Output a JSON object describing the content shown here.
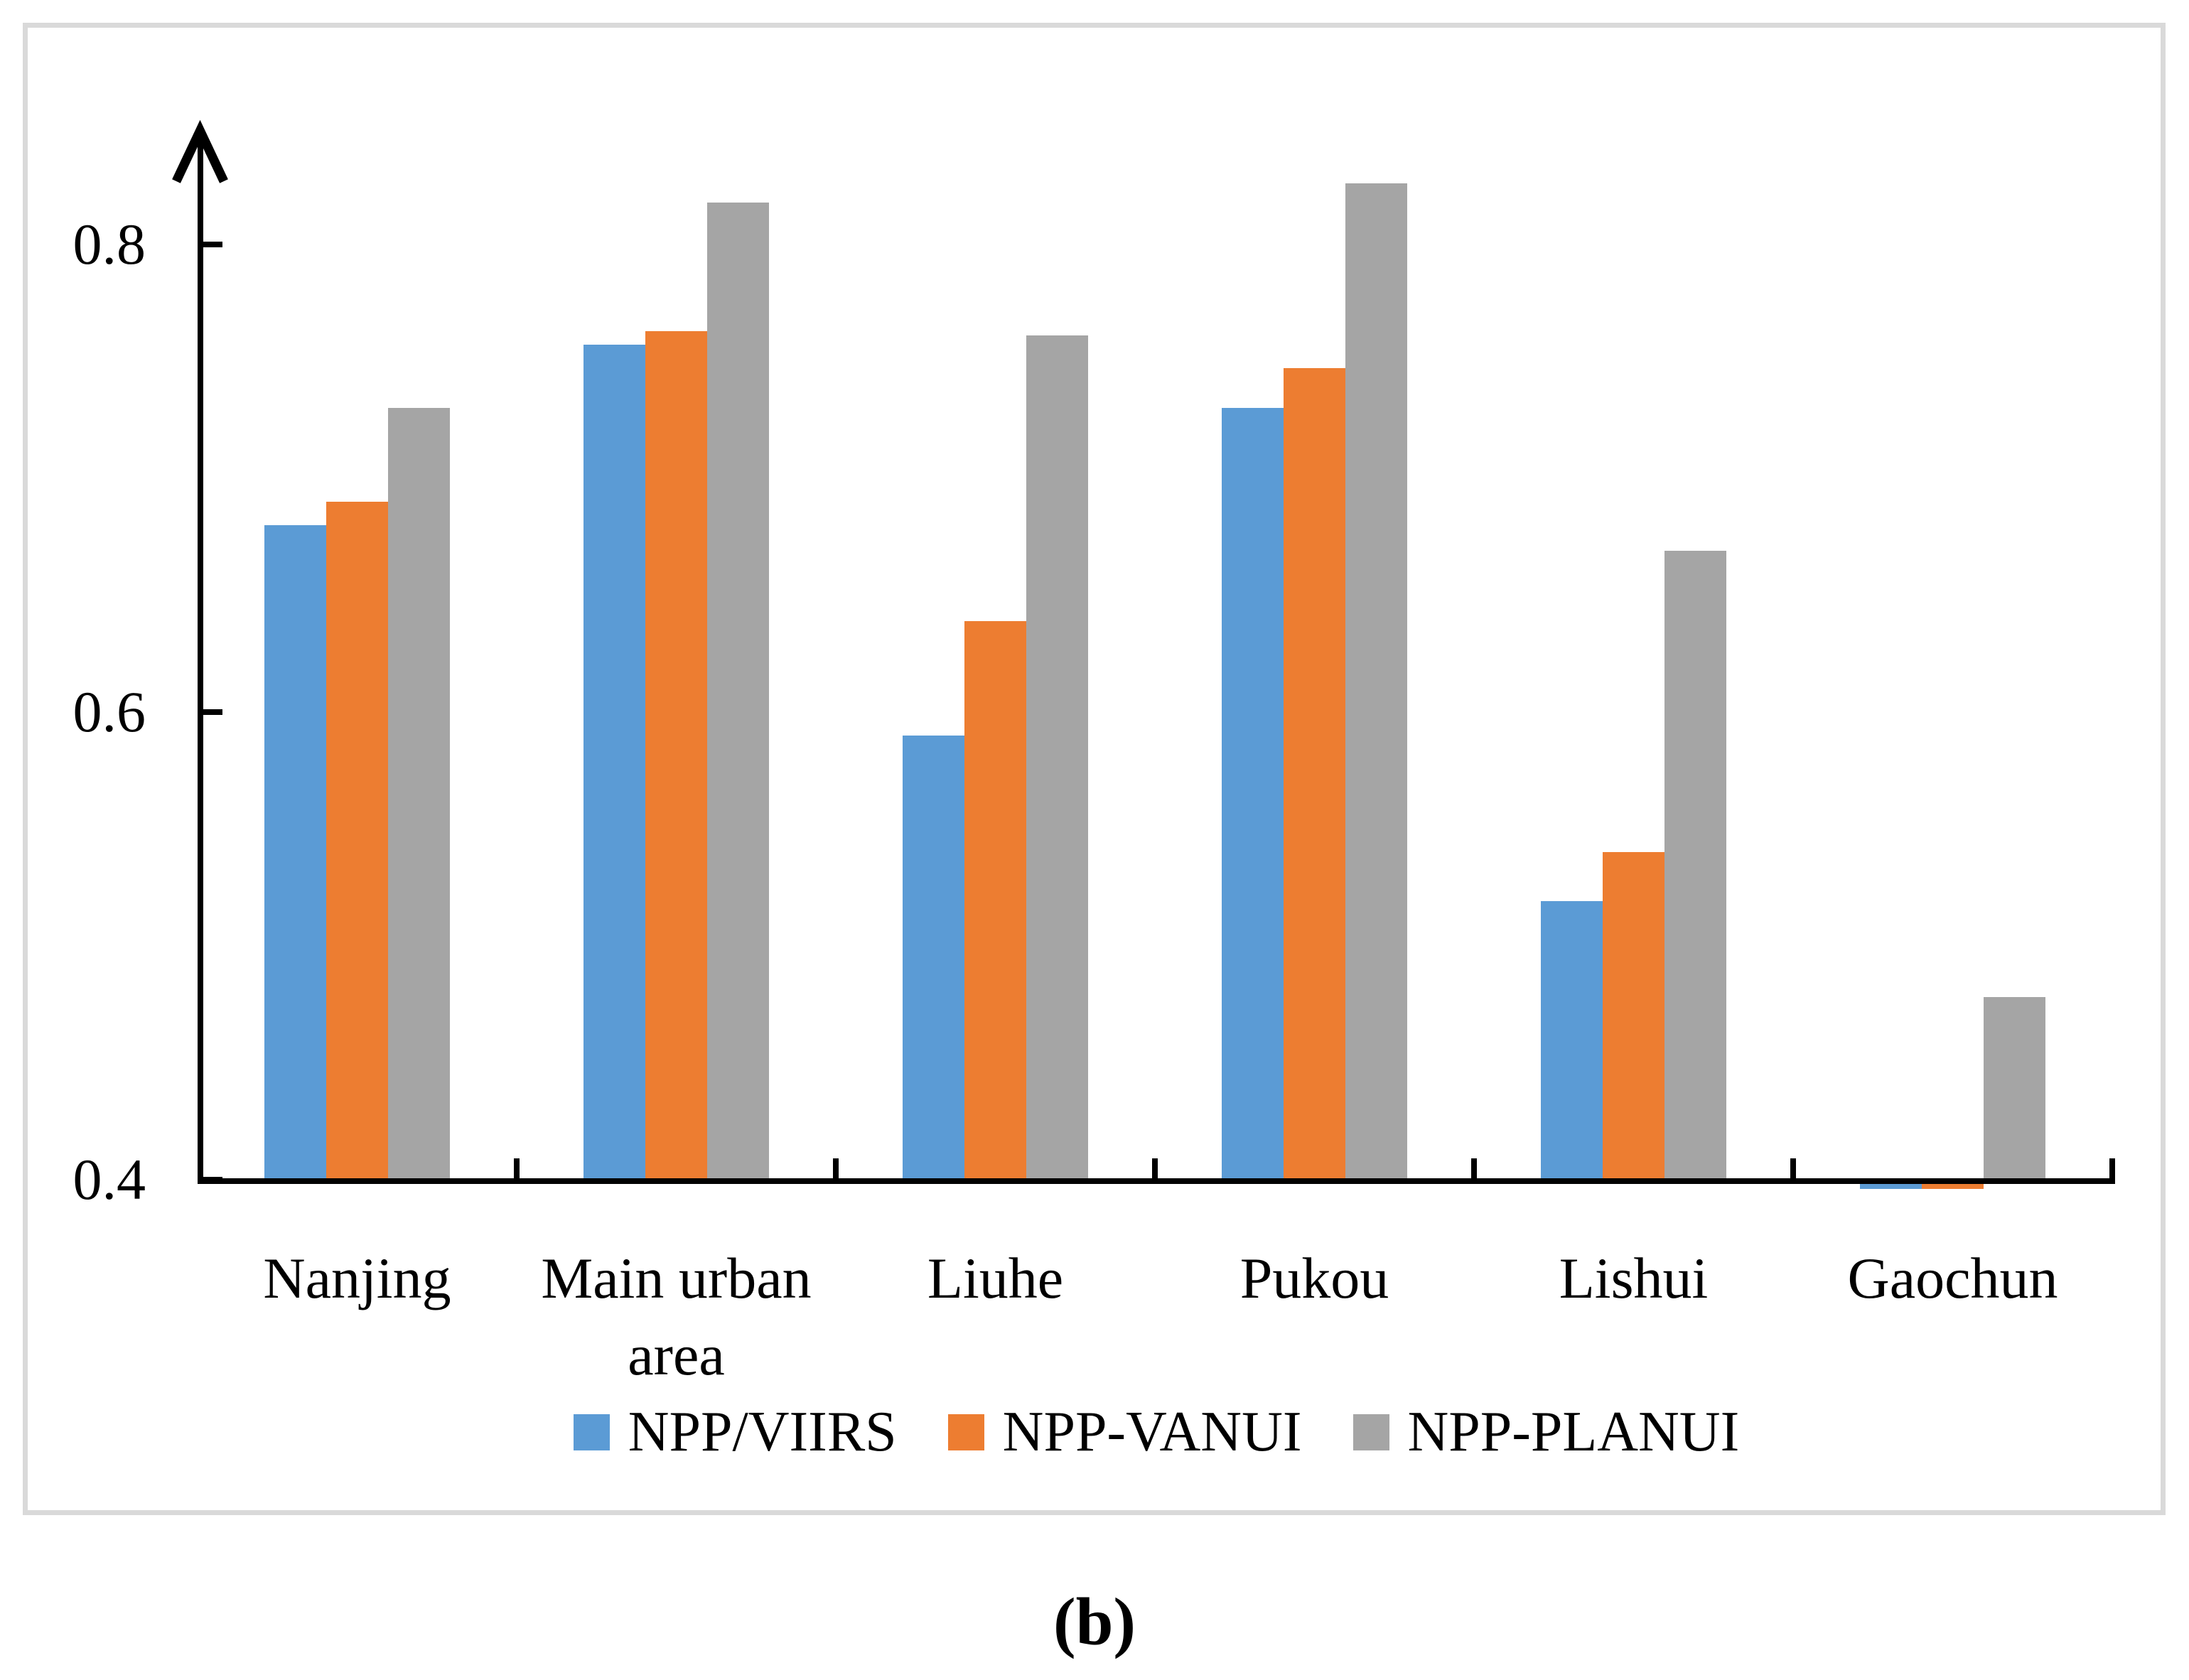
{
  "caption": "(b)",
  "chart_data": {
    "type": "bar",
    "title": "",
    "xlabel": "",
    "ylabel": "",
    "categories": [
      "Nanjing",
      "Main urban area",
      "Liuhe",
      "Pukou",
      "Lishui",
      "Gaochun"
    ],
    "series": [
      {
        "name": "NPP/VIIRS",
        "color": "#5B9BD5",
        "values": [
          0.68,
          0.757,
          0.59,
          0.73,
          0.519,
          0.398
        ]
      },
      {
        "name": "NPP-VANUI",
        "color": "#ED7D31",
        "values": [
          0.69,
          0.763,
          0.639,
          0.747,
          0.54,
          0.398
        ]
      },
      {
        "name": "NPP-PLANUI",
        "color": "#A5A5A5",
        "values": [
          0.73,
          0.818,
          0.761,
          0.826,
          0.669,
          0.478
        ]
      }
    ],
    "ylim": [
      0.4,
      0.84
    ],
    "yticks": [
      0.4,
      0.6,
      0.8
    ],
    "grid": false,
    "legend_position": "bottom",
    "axis_color": "#000000",
    "frame_color": "#D9D9D9"
  }
}
